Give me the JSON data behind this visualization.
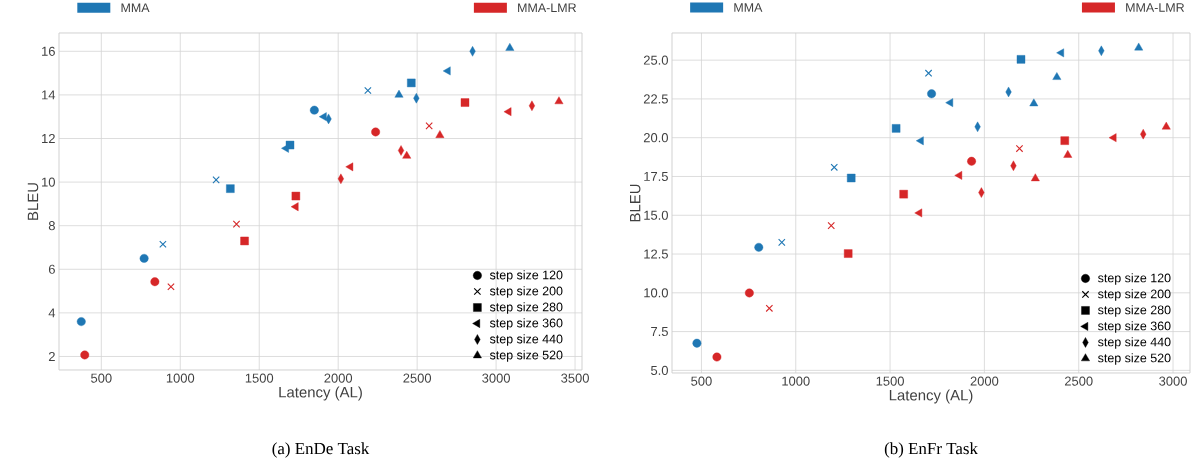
{
  "chart_data": [
    {
      "type": "scatter",
      "title": "(a) EnDe Task",
      "xlabel": "Latency (AL)",
      "ylabel": "BLEU",
      "xlim": [
        232,
        3544
      ],
      "ylim": [
        1.38,
        16.84
      ],
      "xticks": [
        500,
        1000,
        1500,
        2000,
        2500,
        3000,
        3500
      ],
      "yticks": [
        2,
        4,
        6,
        8,
        10,
        12,
        14,
        16
      ],
      "grid": true,
      "legend": "top right",
      "series": [
        {
          "color": "#1f77b4",
          "marker": "circle",
          "x": [
            373,
            771,
            1849
          ],
          "values": [
            3.6,
            6.5,
            13.3
          ]
        },
        {
          "color": "#1f77b4",
          "marker": "cross",
          "x": [
            890,
            1227,
            2188
          ],
          "values": [
            7.15,
            10.1,
            14.2
          ]
        },
        {
          "color": "#1f77b4",
          "marker": "square",
          "x": [
            1317,
            1695,
            2463
          ],
          "values": [
            9.7,
            11.7,
            14.55
          ]
        },
        {
          "color": "#1f77b4",
          "marker": "triangle-left",
          "x": [
            1671,
            1910,
            2695
          ],
          "values": [
            11.55,
            13.0,
            15.1
          ]
        },
        {
          "color": "#1f77b4",
          "marker": "diamond",
          "x": [
            1939,
            2495,
            2851
          ],
          "values": [
            12.9,
            13.85,
            16.0
          ]
        },
        {
          "color": "#1f77b4",
          "marker": "triangle",
          "x": [
            2385,
            3087
          ],
          "values": [
            14.0,
            16.15
          ]
        },
        {
          "color": "#d62728",
          "marker": "circle",
          "x": [
            395,
            839,
            2237
          ],
          "values": [
            2.07,
            5.43,
            12.3
          ]
        },
        {
          "color": "#d62728",
          "marker": "cross",
          "x": [
            941,
            1356,
            2576
          ],
          "values": [
            5.2,
            8.07,
            12.58
          ]
        },
        {
          "color": "#d62728",
          "marker": "square",
          "x": [
            1407,
            1732,
            2803
          ],
          "values": [
            7.3,
            9.36,
            13.65
          ]
        },
        {
          "color": "#d62728",
          "marker": "triangle-left",
          "x": [
            1732,
            2078,
            3080
          ],
          "values": [
            8.87,
            10.7,
            13.23
          ]
        },
        {
          "color": "#d62728",
          "marker": "diamond",
          "x": [
            2017,
            2398,
            3227
          ],
          "values": [
            10.15,
            11.45,
            13.5
          ]
        },
        {
          "color": "#d62728",
          "marker": "triangle",
          "x": [
            2434,
            2644,
            3398
          ],
          "values": [
            11.2,
            12.15,
            13.7
          ]
        },
        {
          "type": "bar",
          "name": "MMA",
          "color": "#1f77b4"
        },
        {
          "type": "bar",
          "name": "MMA-LMR",
          "color": "#d62728"
        },
        {
          "name": "step size 120",
          "color": "#000000",
          "marker": "circle"
        },
        {
          "name": "step size 200",
          "color": "#000000",
          "marker": "cross"
        },
        {
          "name": "step size 280",
          "color": "#000000",
          "marker": "square"
        },
        {
          "name": "step size 360",
          "color": "#000000",
          "marker": "triangle-left"
        },
        {
          "name": "step size 440",
          "color": "#000000",
          "marker": "diamond"
        },
        {
          "name": "step size 520",
          "color": "#000000",
          "marker": "triangle"
        }
      ]
    },
    {
      "type": "scatter",
      "title": "(b) EnFr Task",
      "xlabel": "Latency (AL)",
      "ylabel": "BLEU",
      "xlim": [
        344,
        3090
      ],
      "ylim": [
        4.83,
        26.75
      ],
      "xticks": [
        500,
        1000,
        1500,
        2000,
        2500,
        3000
      ],
      "yticks": [
        {
          "value": 5,
          "label": "5.0"
        },
        {
          "value": 7.5,
          "label": "7.5"
        },
        {
          "value": 10,
          "label": "10.0"
        },
        {
          "value": 12.5,
          "label": "12.5"
        },
        {
          "value": 15,
          "label": "15.0"
        },
        {
          "value": 17.5,
          "label": "17.5"
        },
        {
          "value": 20,
          "label": "20.0"
        },
        {
          "value": 22.5,
          "label": "22.5"
        },
        {
          "value": 25,
          "label": "25.0"
        }
      ],
      "grid": true,
      "legend": "top right",
      "series": [
        {
          "color": "#1f77b4",
          "marker": "circle",
          "x": [
            476,
            804,
            1720
          ],
          "values": [
            6.75,
            12.93,
            22.83
          ]
        },
        {
          "color": "#1f77b4",
          "marker": "cross",
          "x": [
            926,
            1204,
            1704
          ],
          "values": [
            13.25,
            18.09,
            24.16
          ]
        },
        {
          "color": "#1f77b4",
          "marker": "square",
          "x": [
            1294,
            1532,
            2194
          ],
          "values": [
            17.4,
            20.6,
            25.05
          ]
        },
        {
          "color": "#1f77b4",
          "marker": "triangle-left",
          "x": [
            1664,
            1820,
            2408
          ],
          "values": [
            19.8,
            22.26,
            25.47
          ]
        },
        {
          "color": "#1f77b4",
          "marker": "diamond",
          "x": [
            1964,
            2128,
            2620
          ],
          "values": [
            20.7,
            22.95,
            25.6
          ]
        },
        {
          "color": "#1f77b4",
          "marker": "triangle",
          "x": [
            2262,
            2384,
            2818
          ],
          "values": [
            22.2,
            23.9,
            25.8
          ]
        },
        {
          "color": "#d62728",
          "marker": "circle",
          "x": [
            582,
            754,
            1932
          ],
          "values": [
            5.86,
            9.99,
            18.48
          ]
        },
        {
          "color": "#d62728",
          "marker": "cross",
          "x": [
            860,
            1188,
            2186
          ],
          "values": [
            9.0,
            14.33,
            19.3
          ]
        },
        {
          "color": "#d62728",
          "marker": "square",
          "x": [
            1278,
            1572,
            2426
          ],
          "values": [
            12.53,
            16.36,
            19.81
          ]
        },
        {
          "color": "#d62728",
          "marker": "triangle-left",
          "x": [
            1656,
            1868,
            2686
          ],
          "values": [
            15.15,
            17.57,
            20.0
          ]
        },
        {
          "color": "#d62728",
          "marker": "diamond",
          "x": [
            1984,
            2154,
            2842
          ],
          "values": [
            16.46,
            18.19,
            20.23
          ]
        },
        {
          "color": "#d62728",
          "marker": "triangle",
          "x": [
            2270,
            2442,
            2964
          ],
          "values": [
            17.37,
            18.88,
            20.7
          ]
        },
        {
          "type": "bar",
          "name": "MMA",
          "color": "#1f77b4"
        },
        {
          "type": "bar",
          "name": "MMA-LMR",
          "color": "#d62728"
        },
        {
          "name": "step size 120",
          "color": "#000000",
          "marker": "circle"
        },
        {
          "name": "step size 200",
          "color": "#000000",
          "marker": "cross"
        },
        {
          "name": "step size 280",
          "color": "#000000",
          "marker": "square"
        },
        {
          "name": "step size 360",
          "color": "#000000",
          "marker": "triangle-left"
        },
        {
          "name": "step size 440",
          "color": "#000000",
          "marker": "diamond"
        },
        {
          "name": "step size 520",
          "color": "#000000",
          "marker": "triangle"
        }
      ]
    }
  ]
}
